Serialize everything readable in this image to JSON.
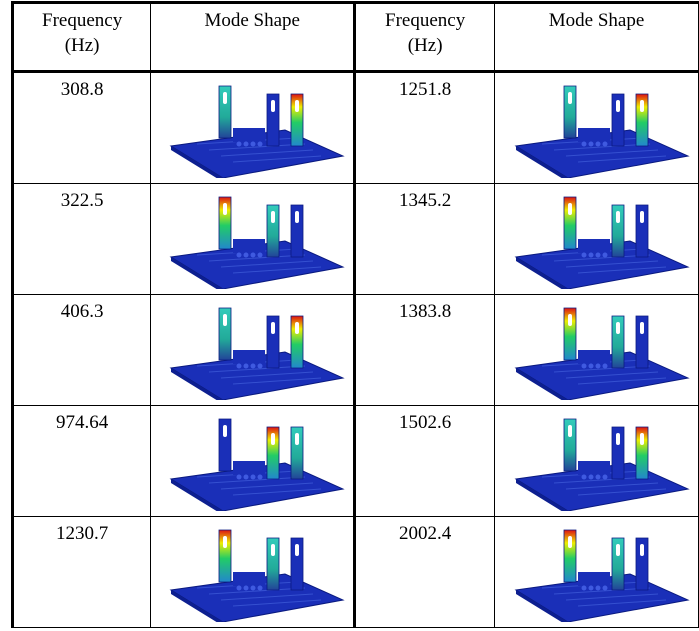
{
  "table": {
    "headers": [
      "Frequency (Hz)",
      "Mode Shape",
      "Frequency (Hz)",
      "Mode Shape"
    ],
    "rows": [
      [
        "308.8",
        "1251.8"
      ],
      [
        "322.5",
        "1345.2"
      ],
      [
        "406.3",
        "1383.8"
      ],
      [
        "974.64",
        "1502.6"
      ],
      [
        "1230.7",
        "2002.4"
      ]
    ]
  }
}
